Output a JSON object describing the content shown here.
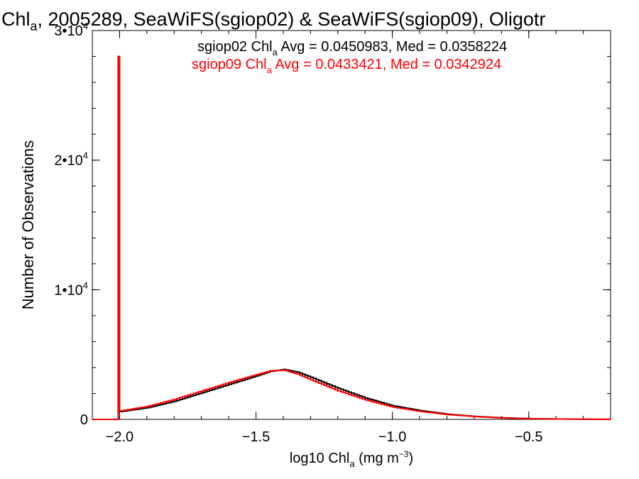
{
  "chart_data": {
    "type": "line",
    "title": {
      "pre": "Chl",
      "sub": "a",
      "post": ", 2005289, SeaWiFS(sgiop02) & SeaWiFS(sgiop09), Oligotr"
    },
    "xlabel": {
      "pre": "log10 Chl",
      "sub": "a",
      "mid": " (mg m",
      "sup": "−3",
      "post": ")"
    },
    "ylabel": "Number of Observations",
    "xlim": [
      -2.1,
      -0.2
    ],
    "ylim": [
      0,
      30000
    ],
    "x_ticks": [
      {
        "value": -2.0,
        "label": "−2.0"
      },
      {
        "value": -1.5,
        "label": "−1.5"
      },
      {
        "value": -1.0,
        "label": "−1.0"
      },
      {
        "value": -0.5,
        "label": "−0.5"
      }
    ],
    "y_ticks": [
      {
        "value": 0,
        "label": "0"
      },
      {
        "value": 10000,
        "mant": "1•10",
        "exp": "4"
      },
      {
        "value": 20000,
        "mant": "2•10",
        "exp": "4"
      },
      {
        "value": 30000,
        "mant": "3•10",
        "exp": "4"
      }
    ],
    "legend_position": "top-right",
    "series": [
      {
        "label": {
          "pre": "sgiop02 Chl",
          "sub": "a",
          "post": " Avg = 0.0450983, Med = 0.0358224"
        },
        "color": "#000000",
        "spike": {
          "x": -2.0,
          "value": 28000
        },
        "x": [
          -2.0,
          -1.9,
          -1.8,
          -1.7,
          -1.6,
          -1.5,
          -1.45,
          -1.4,
          -1.35,
          -1.3,
          -1.2,
          -1.1,
          -1.0,
          -0.9,
          -0.8,
          -0.7,
          -0.6,
          -0.5,
          -0.4,
          -0.3,
          -0.2
        ],
        "values": [
          600,
          900,
          1400,
          2050,
          2700,
          3350,
          3700,
          3850,
          3650,
          3250,
          2400,
          1650,
          1050,
          680,
          400,
          230,
          120,
          60,
          30,
          15,
          5
        ]
      },
      {
        "label": {
          "pre": "sgiop09 Chl",
          "sub": "a",
          "post": " Avg = 0.0433421, Med = 0.0342924"
        },
        "color": "#ff0000",
        "spike": {
          "x": -2.0,
          "value": 28000
        },
        "x": [
          -2.0,
          -1.9,
          -1.8,
          -1.7,
          -1.6,
          -1.5,
          -1.45,
          -1.4,
          -1.35,
          -1.3,
          -1.2,
          -1.1,
          -1.0,
          -0.9,
          -0.8,
          -0.7,
          -0.6,
          -0.5,
          -0.4,
          -0.3,
          -0.2
        ],
        "values": [
          650,
          1000,
          1550,
          2200,
          2850,
          3450,
          3750,
          3800,
          3500,
          3050,
          2200,
          1500,
          950,
          620,
          370,
          220,
          110,
          55,
          28,
          12,
          5
        ]
      }
    ]
  }
}
